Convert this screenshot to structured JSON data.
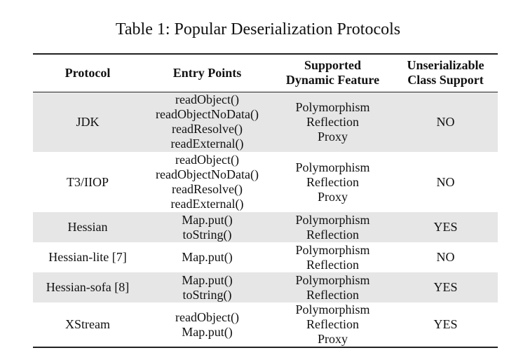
{
  "caption": "Table 1: Popular Deserialization Protocols",
  "headers": {
    "protocol": "Protocol",
    "entry_points": "Entry Points",
    "dynamic_feature": [
      "Supported",
      "Dynamic Feature"
    ],
    "unserializable": [
      "Unserializable",
      "Class Support"
    ]
  },
  "rows": [
    {
      "protocol": "JDK",
      "entry_points": [
        "readObject()",
        "readObjectNoData()",
        "readResolve()",
        "readExternal()"
      ],
      "features": [
        "Polymorphism",
        "Reflection",
        "Proxy"
      ],
      "support": "NO"
    },
    {
      "protocol": "T3/IIOP",
      "entry_points": [
        "readObject()",
        "readObjectNoData()",
        "readResolve()",
        "readExternal()"
      ],
      "features": [
        "Polymorphism",
        "Reflection",
        "Proxy"
      ],
      "support": "NO"
    },
    {
      "protocol": "Hessian",
      "entry_points": [
        "Map.put()",
        "toString()"
      ],
      "features": [
        "Polymorphism",
        "Reflection"
      ],
      "support": "YES"
    },
    {
      "protocol": "Hessian-lite [7]",
      "entry_points": [
        "Map.put()"
      ],
      "features": [
        "Polymorphism",
        "Reflection"
      ],
      "support": "NO"
    },
    {
      "protocol": "Hessian-sofa [8]",
      "entry_points": [
        "Map.put()",
        "toString()"
      ],
      "features": [
        "Polymorphism",
        "Reflection"
      ],
      "support": "YES"
    },
    {
      "protocol": "XStream",
      "entry_points": [
        "readObject()",
        "Map.put()"
      ],
      "features": [
        "Polymorphism",
        "Reflection",
        "Proxy"
      ],
      "support": "YES"
    }
  ]
}
